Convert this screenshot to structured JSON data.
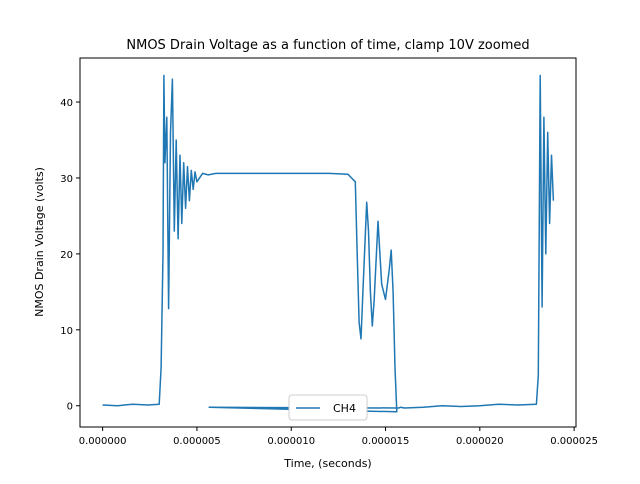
{
  "chart_data": {
    "type": "line",
    "title": "NMOS Drain Voltage as a function of time, clamp 10V zoomed",
    "xlabel": "Time, (seconds)",
    "ylabel": "NMOS Drain Voltage (volts)",
    "xlim": [
      -1.2e-06,
      2.51e-05
    ],
    "ylim": [
      -2.8,
      45.8
    ],
    "xticks": [
      0.0,
      5e-06,
      1e-05,
      1.5e-05,
      2e-05,
      2.5e-05
    ],
    "xtick_labels": [
      "0.000000",
      "0.000005",
      "0.000010",
      "0.000015",
      "0.000020",
      "0.000025"
    ],
    "yticks": [
      0,
      10,
      20,
      30,
      40
    ],
    "ytick_labels": [
      "0",
      "10",
      "20",
      "30",
      "40"
    ],
    "grid": false,
    "legend_position": "bottom-center",
    "line_color": "#1f77b4",
    "series": [
      {
        "name": "CH4",
        "x": [
          0.0,
          8e-07,
          1.6e-06,
          2.4e-06,
          3e-06,
          3.1e-06,
          3.2e-06,
          3.25e-06,
          3.3e-06,
          3.4e-06,
          3.5e-06,
          3.6e-06,
          3.7e-06,
          3.8e-06,
          3.9e-06,
          4e-06,
          4.1e-06,
          4.2e-06,
          4.3e-06,
          4.4e-06,
          4.5e-06,
          4.6e-06,
          4.7e-06,
          4.8e-06,
          4.9e-06,
          5e-06,
          5.3e-06,
          5.6e-06,
          6e-06,
          6.5e-06,
          7e-06,
          8e-06,
          9e-06,
          1e-05,
          1.1e-05,
          1.2e-05,
          1.3e-05,
          1.32e-05,
          1.34e-05,
          1.35e-05,
          1.36e-05,
          1.37e-05,
          1.38e-05,
          1.4e-05,
          1.41e-05,
          1.42e-05,
          1.43e-05,
          1.44e-05,
          1.46e-05,
          1.48e-05,
          1.5e-05,
          1.51e-05,
          1.52e-05,
          1.53e-05,
          1.54e-05,
          1.55e-05,
          1.56e-05,
          5.65e-06,
          1.57e-05,
          1.58e-05,
          1.6e-05,
          1.7e-05,
          1.8e-05,
          1.9e-05,
          2e-05,
          2.1e-05,
          2.2e-05,
          2.3e-05,
          2.31e-05,
          2.32e-05,
          2.33e-05,
          2.34e-05,
          2.35e-05,
          2.36e-05,
          2.37e-05,
          2.38e-05,
          2.39e-05
        ],
        "values": [
          0.1,
          0.0,
          0.2,
          0.1,
          0.2,
          5.0,
          20.0,
          43.5,
          32.0,
          38.0,
          12.8,
          36.0,
          43.0,
          23.0,
          35.0,
          22.0,
          33.0,
          24.0,
          32.0,
          26.0,
          31.5,
          27.0,
          31.0,
          28.5,
          30.8,
          29.5,
          30.6,
          30.4,
          30.6,
          30.6,
          30.6,
          30.6,
          30.6,
          30.6,
          30.6,
          30.6,
          30.5,
          30.0,
          29.5,
          20.0,
          11.0,
          8.8,
          15.0,
          26.8,
          23.0,
          15.0,
          10.5,
          14.0,
          24.3,
          16.0,
          14.0,
          16.0,
          18.0,
          20.5,
          15.0,
          5.0,
          -0.8,
          -0.2,
          -0.3,
          -0.2,
          -0.3,
          -0.2,
          0.0,
          -0.1,
          0.0,
          0.2,
          0.1,
          0.2,
          4.0,
          43.5,
          13.0,
          38.0,
          20.0,
          36.0,
          24.0,
          33.0,
          27.0
        ]
      }
    ]
  }
}
